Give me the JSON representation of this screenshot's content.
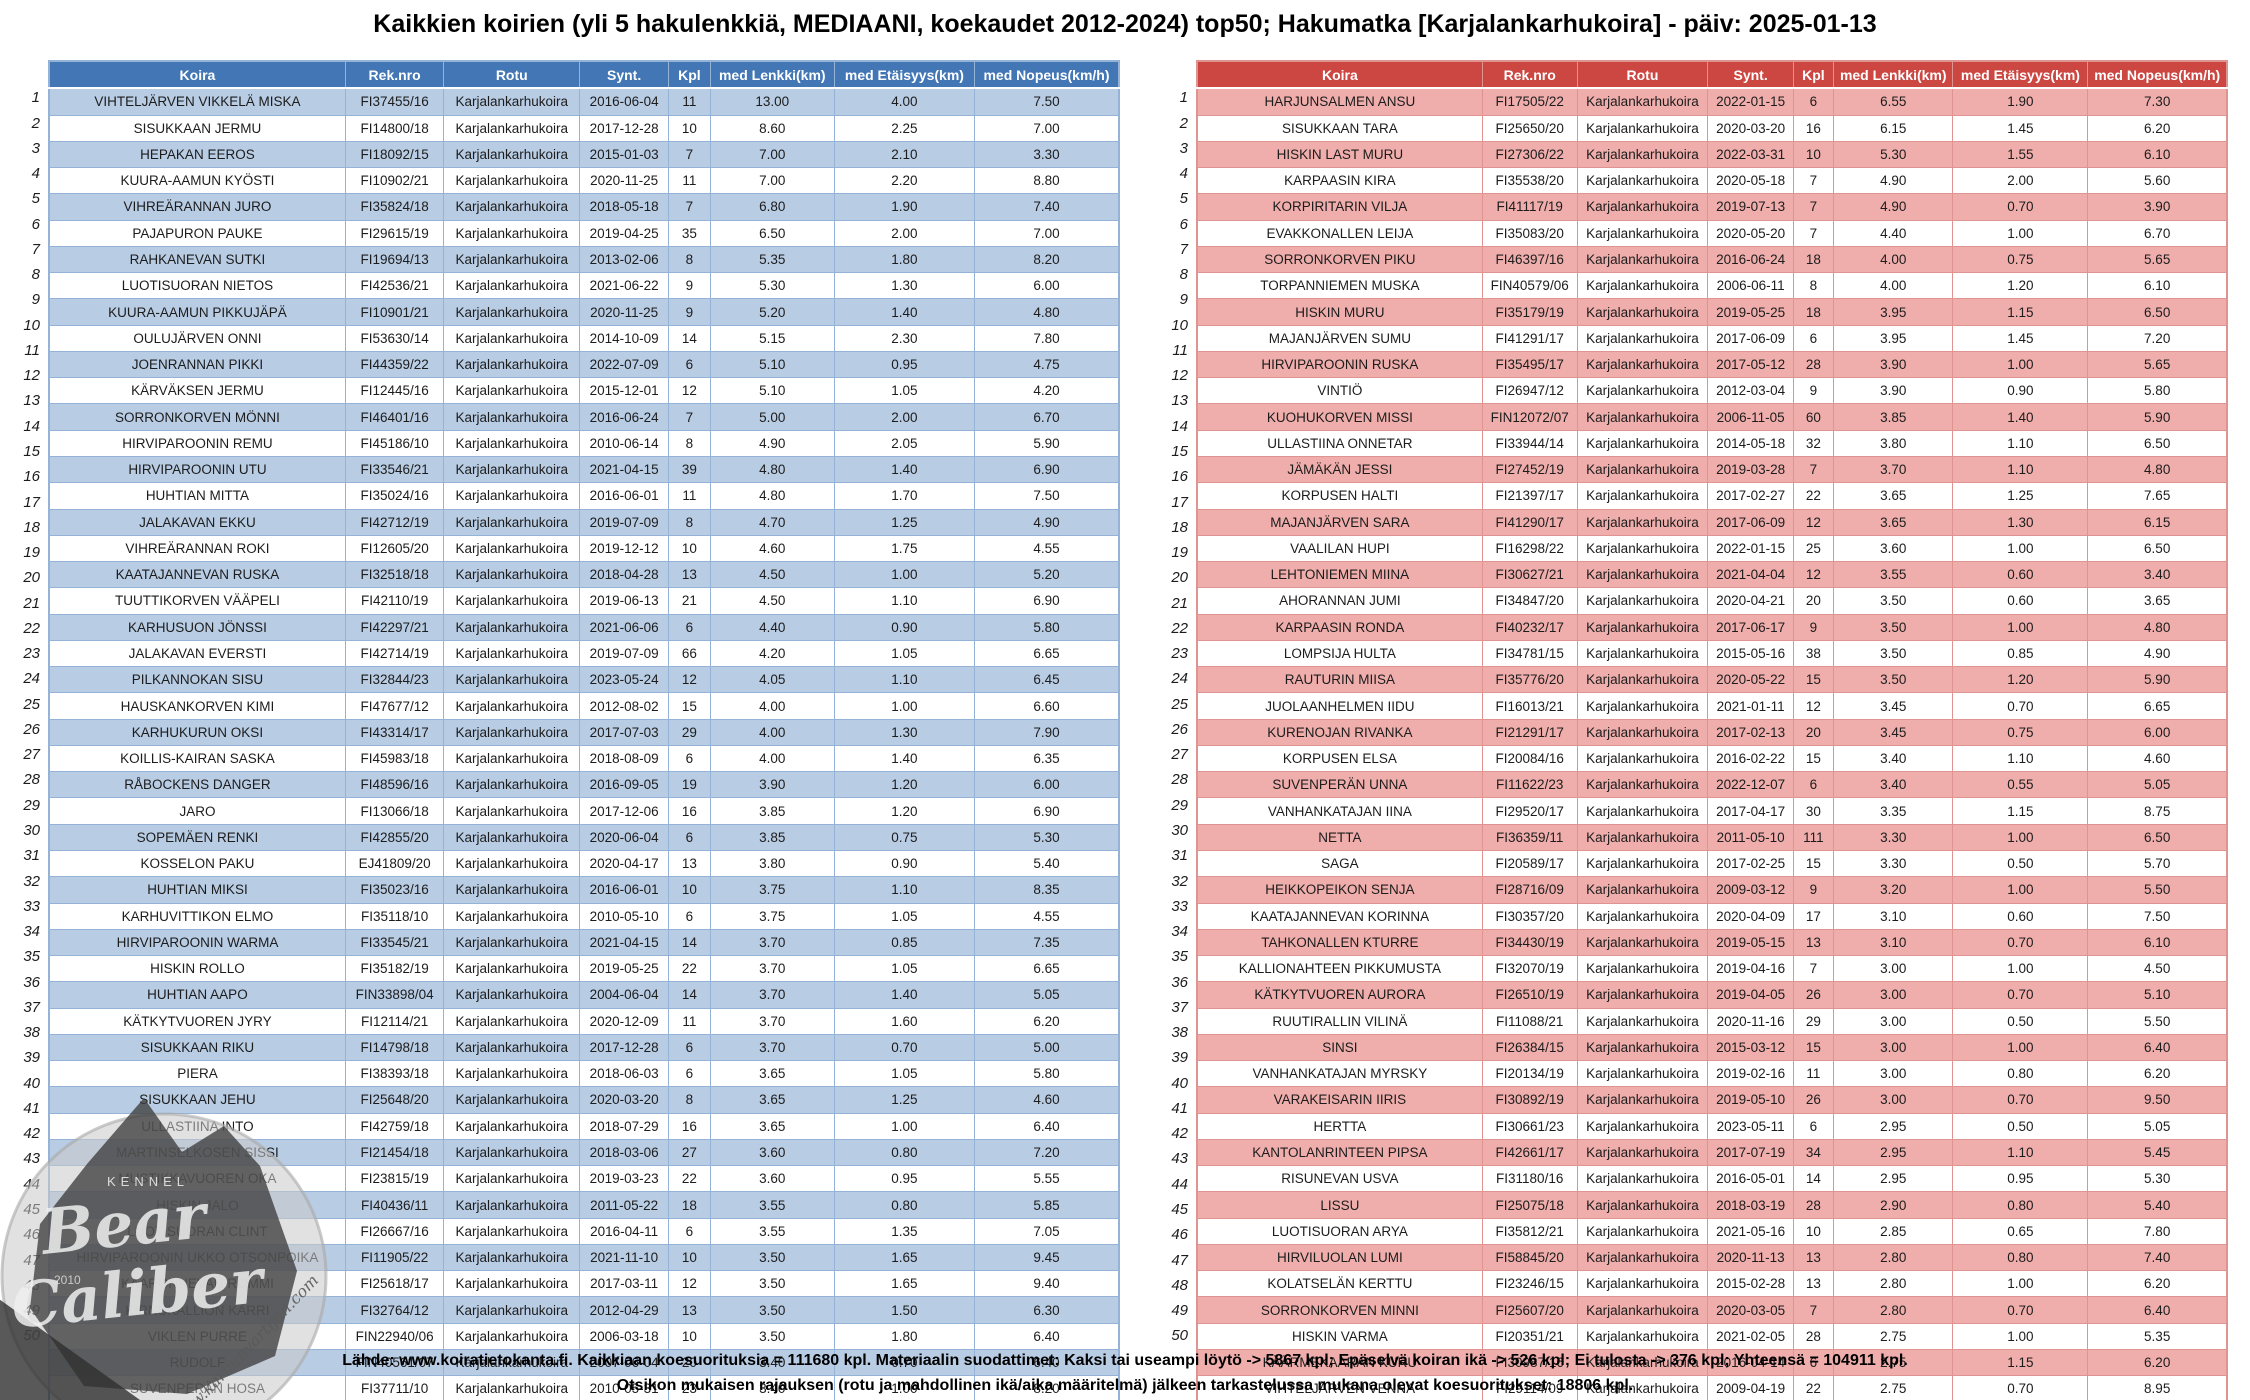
{
  "title": "Kaikkien koirien (yli 5 hakulenkkiä, MEDIAANI, koekaudet 2012-2024) top50; Hakumatka [Karjalankarhukoira] - päiv: 2025-01-13",
  "columns": [
    "Koira",
    "Rek.nro",
    "Rotu",
    "Synt.",
    "Kpl",
    "med Lenkki(km)",
    "med Etäisyys(km)",
    "med Nopeus(km/h)"
  ],
  "colors": {
    "left_header": "#4276b5",
    "left_band": "#b8cce4",
    "left_border": "#95b3d7",
    "right_header": "#cc4742",
    "right_band": "#efaeac",
    "right_border": "#e09492"
  },
  "left_table": {
    "rotu": "Karjalankarhukoira",
    "rows": [
      [
        "1",
        "VIHTELJÄRVEN VIKKELÄ MISKA",
        "FI37455/16",
        "2016-06-04",
        "11",
        "13.00",
        "4.00",
        "7.50"
      ],
      [
        "2",
        "SISUKKAAN JERMU",
        "FI14800/18",
        "2017-12-28",
        "10",
        "8.60",
        "2.25",
        "7.00"
      ],
      [
        "3",
        "HEPAKAN EEROS",
        "FI18092/15",
        "2015-01-03",
        "7",
        "7.00",
        "2.10",
        "3.30"
      ],
      [
        "4",
        "KUURA-AAMUN KYÖSTI",
        "FI10902/21",
        "2020-11-25",
        "11",
        "7.00",
        "2.20",
        "8.80"
      ],
      [
        "5",
        "VIHREÄRANNAN JURO",
        "FI35824/18",
        "2018-05-18",
        "7",
        "6.80",
        "1.90",
        "7.40"
      ],
      [
        "6",
        "PAJAPURON PAUKE",
        "FI29615/19",
        "2019-04-25",
        "35",
        "6.50",
        "2.00",
        "7.00"
      ],
      [
        "7",
        "RAHKANEVAN SUTKI",
        "FI19694/13",
        "2013-02-06",
        "8",
        "5.35",
        "1.80",
        "8.20"
      ],
      [
        "8",
        "LUOTISUORAN NIETOS",
        "FI42536/21",
        "2021-06-22",
        "9",
        "5.30",
        "1.30",
        "6.00"
      ],
      [
        "9",
        "KUURA-AAMUN PIKKUJÄPÄ",
        "FI10901/21",
        "2020-11-25",
        "9",
        "5.20",
        "1.40",
        "4.80"
      ],
      [
        "10",
        "OULUJÄRVEN ONNI",
        "FI53630/14",
        "2014-10-09",
        "14",
        "5.15",
        "2.30",
        "7.80"
      ],
      [
        "11",
        "JOENRANNAN PIKKI",
        "FI44359/22",
        "2022-07-09",
        "6",
        "5.10",
        "0.95",
        "4.75"
      ],
      [
        "12",
        "KÄRVÄKSEN JERMU",
        "FI12445/16",
        "2015-12-01",
        "12",
        "5.10",
        "1.05",
        "4.20"
      ],
      [
        "13",
        "SORRONKORVEN MÖNNI",
        "FI46401/16",
        "2016-06-24",
        "7",
        "5.00",
        "2.00",
        "6.70"
      ],
      [
        "14",
        "HIRVIPAROONIN REMU",
        "FI45186/10",
        "2010-06-14",
        "8",
        "4.90",
        "2.05",
        "5.90"
      ],
      [
        "15",
        "HIRVIPAROONIN UTU",
        "FI33546/21",
        "2021-04-15",
        "39",
        "4.80",
        "1.40",
        "6.90"
      ],
      [
        "16",
        "HUHTIAN MITTA",
        "FI35024/16",
        "2016-06-01",
        "11",
        "4.80",
        "1.70",
        "7.50"
      ],
      [
        "17",
        "JALAKAVAN EKKU",
        "FI42712/19",
        "2019-07-09",
        "8",
        "4.70",
        "1.25",
        "4.90"
      ],
      [
        "18",
        "VIHREÄRANNAN ROKI",
        "FI12605/20",
        "2019-12-12",
        "10",
        "4.60",
        "1.75",
        "4.55"
      ],
      [
        "19",
        "KAATAJANNEVAN RUSKA",
        "FI32518/18",
        "2018-04-28",
        "13",
        "4.50",
        "1.00",
        "5.20"
      ],
      [
        "20",
        "TUUTTIKORVEN VÄÄPELI",
        "FI42110/19",
        "2019-06-13",
        "21",
        "4.50",
        "1.10",
        "6.90"
      ],
      [
        "21",
        "KARHUSUON JÖNSSI",
        "FI42297/21",
        "2021-06-06",
        "6",
        "4.40",
        "0.90",
        "5.80"
      ],
      [
        "22",
        "JALAKAVAN EVERSTI",
        "FI42714/19",
        "2019-07-09",
        "66",
        "4.20",
        "1.05",
        "6.65"
      ],
      [
        "23",
        "PILKANNOKAN SISU",
        "FI32844/23",
        "2023-05-24",
        "12",
        "4.05",
        "1.10",
        "6.45"
      ],
      [
        "24",
        "HAUSKANKORVEN KIMI",
        "FI47677/12",
        "2012-08-02",
        "15",
        "4.00",
        "1.00",
        "6.60"
      ],
      [
        "25",
        "KARHUKURUN OKSI",
        "FI43314/17",
        "2017-07-03",
        "29",
        "4.00",
        "1.30",
        "7.90"
      ],
      [
        "26",
        "KOILLIS-KAIRAN SASKA",
        "FI45983/18",
        "2018-08-09",
        "6",
        "4.00",
        "1.40",
        "6.35"
      ],
      [
        "27",
        "RÅBOCKENS DANGER",
        "FI48596/16",
        "2016-09-05",
        "19",
        "3.90",
        "1.20",
        "6.00"
      ],
      [
        "28",
        "JARO",
        "FI13066/18",
        "2017-12-06",
        "16",
        "3.85",
        "1.20",
        "6.90"
      ],
      [
        "29",
        "SOPEMÄEN RENKI",
        "FI42855/20",
        "2020-06-04",
        "6",
        "3.85",
        "0.75",
        "5.30"
      ],
      [
        "30",
        "KOSSELON PAKU",
        "EJ41809/20",
        "2020-04-17",
        "13",
        "3.80",
        "0.90",
        "5.40"
      ],
      [
        "31",
        "HUHTIAN MIKSI",
        "FI35023/16",
        "2016-06-01",
        "10",
        "3.75",
        "1.10",
        "8.35"
      ],
      [
        "32",
        "KARHUVITTIKON ELMO",
        "FI35118/10",
        "2010-05-10",
        "6",
        "3.75",
        "1.05",
        "4.55"
      ],
      [
        "33",
        "HIRVIPAROONIN WARMA",
        "FI33545/21",
        "2021-04-15",
        "14",
        "3.70",
        "0.85",
        "7.35"
      ],
      [
        "34",
        "HISKIN ROLLO",
        "FI35182/19",
        "2019-05-25",
        "22",
        "3.70",
        "1.05",
        "6.65"
      ],
      [
        "35",
        "HUHTIAN AAPO",
        "FIN33898/04",
        "2004-06-04",
        "14",
        "3.70",
        "1.40",
        "5.05"
      ],
      [
        "36",
        "KÄTKYTVUOREN JYRY",
        "FI12114/21",
        "2020-12-09",
        "11",
        "3.70",
        "1.60",
        "6.20"
      ],
      [
        "37",
        "SISUKKAAN RIKU",
        "FI14798/18",
        "2017-12-28",
        "6",
        "3.70",
        "0.70",
        "5.00"
      ],
      [
        "38",
        "PIERA",
        "FI38393/18",
        "2018-06-03",
        "6",
        "3.65",
        "1.05",
        "5.80"
      ],
      [
        "39",
        "SISUKKAAN JEHU",
        "FI25648/20",
        "2020-03-20",
        "8",
        "3.65",
        "1.25",
        "4.60"
      ],
      [
        "40",
        "ULLASTIINA INTO",
        "FI42759/18",
        "2018-07-29",
        "16",
        "3.65",
        "1.00",
        "6.40"
      ],
      [
        "41",
        "MARTINSELKOSEN SISSI",
        "FI21454/18",
        "2018-03-06",
        "27",
        "3.60",
        "0.80",
        "7.20"
      ],
      [
        "42",
        "MUSTIKKAVUOREN OKA",
        "FI23815/19",
        "2019-03-23",
        "22",
        "3.60",
        "0.95",
        "5.55"
      ],
      [
        "43",
        "HISKIN JALO",
        "FI40436/11",
        "2011-05-22",
        "18",
        "3.55",
        "0.80",
        "5.85"
      ],
      [
        "44",
        "LUOTISUORAN CLINT",
        "FI26667/16",
        "2016-04-11",
        "6",
        "3.55",
        "1.35",
        "7.05"
      ],
      [
        "45",
        "HIRVIPAROONIN UKKO OTSONPOIKA",
        "FI11905/22",
        "2021-11-10",
        "10",
        "3.50",
        "1.65",
        "9.45"
      ],
      [
        "46",
        "KAARONNEVAN ROMMI",
        "FI25618/17",
        "2017-03-11",
        "12",
        "3.50",
        "1.65",
        "9.40"
      ],
      [
        "47",
        "KIRNUKALLION KARRI",
        "FI32764/12",
        "2012-04-29",
        "13",
        "3.50",
        "1.50",
        "6.30"
      ],
      [
        "48",
        "VIKLEN PURRE",
        "FIN22940/06",
        "2006-03-18",
        "10",
        "3.50",
        "1.80",
        "6.40"
      ],
      [
        "49",
        "RUDOLF",
        "FIN40561/07",
        "2007-06-04",
        "20",
        "3.40",
        "0.70",
        "6.40"
      ],
      [
        "50",
        "SUVENPERÄN HOSA",
        "FI37711/10",
        "2010-05-31",
        "23",
        "3.40",
        "1.00",
        "8.20"
      ]
    ]
  },
  "right_table": {
    "rotu": "Karjalankarhukoira",
    "rows": [
      [
        "1",
        "HARJUNSALMEN ANSU",
        "FI17505/22",
        "2022-01-15",
        "6",
        "6.55",
        "1.90",
        "7.30"
      ],
      [
        "2",
        "SISUKKAAN TARA",
        "FI25650/20",
        "2020-03-20",
        "16",
        "6.15",
        "1.45",
        "6.20"
      ],
      [
        "3",
        "HISKIN LAST MURU",
        "FI27306/22",
        "2022-03-31",
        "10",
        "5.30",
        "1.55",
        "6.10"
      ],
      [
        "4",
        "KARPAASIN KIRA",
        "FI35538/20",
        "2020-05-18",
        "7",
        "4.90",
        "2.00",
        "5.60"
      ],
      [
        "5",
        "KORPIRITARIN VILJA",
        "FI41117/19",
        "2019-07-13",
        "7",
        "4.90",
        "0.70",
        "3.90"
      ],
      [
        "6",
        "EVAKKONALLEN LEIJA",
        "FI35083/20",
        "2020-05-20",
        "7",
        "4.40",
        "1.00",
        "6.70"
      ],
      [
        "7",
        "SORRONKORVEN PIKU",
        "FI46397/16",
        "2016-06-24",
        "18",
        "4.00",
        "0.75",
        "5.65"
      ],
      [
        "8",
        "TORPANNIEMEN MUSKA",
        "FIN40579/06",
        "2006-06-11",
        "8",
        "4.00",
        "1.20",
        "6.10"
      ],
      [
        "9",
        "HISKIN MURU",
        "FI35179/19",
        "2019-05-25",
        "18",
        "3.95",
        "1.15",
        "6.50"
      ],
      [
        "10",
        "MAJANJÄRVEN SUMU",
        "FI41291/17",
        "2017-06-09",
        "6",
        "3.95",
        "1.45",
        "7.20"
      ],
      [
        "11",
        "HIRVIPAROONIN RUSKA",
        "FI35495/17",
        "2017-05-12",
        "28",
        "3.90",
        "1.00",
        "5.65"
      ],
      [
        "12",
        "VINTIÖ",
        "FI26947/12",
        "2012-03-04",
        "9",
        "3.90",
        "0.90",
        "5.80"
      ],
      [
        "13",
        "KUOHUKORVEN MISSI",
        "FIN12072/07",
        "2006-11-05",
        "60",
        "3.85",
        "1.40",
        "5.90"
      ],
      [
        "14",
        "ULLASTIINA ONNETAR",
        "FI33944/14",
        "2014-05-18",
        "32",
        "3.80",
        "1.10",
        "6.50"
      ],
      [
        "15",
        "JÄMÄKÄN JESSI",
        "FI27452/19",
        "2019-03-28",
        "7",
        "3.70",
        "1.10",
        "4.80"
      ],
      [
        "16",
        "KORPUSEN HALTI",
        "FI21397/17",
        "2017-02-27",
        "22",
        "3.65",
        "1.25",
        "7.65"
      ],
      [
        "17",
        "MAJANJÄRVEN SARA",
        "FI41290/17",
        "2017-06-09",
        "12",
        "3.65",
        "1.30",
        "6.15"
      ],
      [
        "18",
        "VAALILAN HUPI",
        "FI16298/22",
        "2022-01-15",
        "25",
        "3.60",
        "1.00",
        "6.50"
      ],
      [
        "19",
        "LEHTONIEMEN MIINA",
        "FI30627/21",
        "2021-04-04",
        "12",
        "3.55",
        "0.60",
        "3.40"
      ],
      [
        "20",
        "AHORANNAN JUMI",
        "FI34847/20",
        "2020-04-21",
        "20",
        "3.50",
        "0.60",
        "3.65"
      ],
      [
        "21",
        "KARPAASIN RONDA",
        "FI40232/17",
        "2017-06-17",
        "9",
        "3.50",
        "1.00",
        "4.80"
      ],
      [
        "22",
        "LOMPSIJA HULTA",
        "FI34781/15",
        "2015-05-16",
        "38",
        "3.50",
        "0.85",
        "4.90"
      ],
      [
        "23",
        "RAUTURIN MIISA",
        "FI35776/20",
        "2020-05-22",
        "15",
        "3.50",
        "1.20",
        "5.90"
      ],
      [
        "24",
        "JUOLAANHELMEN IIDU",
        "FI16013/21",
        "2021-01-11",
        "12",
        "3.45",
        "0.70",
        "6.65"
      ],
      [
        "25",
        "KURENOJAN RIVANKA",
        "FI21291/17",
        "2017-02-13",
        "20",
        "3.45",
        "0.75",
        "6.00"
      ],
      [
        "26",
        "KORPUSEN ELSA",
        "FI20084/16",
        "2016-02-22",
        "15",
        "3.40",
        "1.10",
        "4.60"
      ],
      [
        "27",
        "SUVENPERÄN UNNA",
        "FI11622/23",
        "2022-12-07",
        "6",
        "3.40",
        "0.55",
        "5.05"
      ],
      [
        "28",
        "VANHANKATAJAN IINA",
        "FI29520/17",
        "2017-04-17",
        "30",
        "3.35",
        "1.15",
        "8.75"
      ],
      [
        "29",
        "NETTA",
        "FI36359/11",
        "2011-05-10",
        "111",
        "3.30",
        "1.00",
        "6.50"
      ],
      [
        "30",
        "SAGA",
        "FI20589/17",
        "2017-02-25",
        "15",
        "3.30",
        "0.50",
        "5.70"
      ],
      [
        "31",
        "HEIKKOPEIKON SENJA",
        "FI28716/09",
        "2009-03-12",
        "9",
        "3.20",
        "1.00",
        "5.50"
      ],
      [
        "32",
        "KAATAJANNEVAN KORINNA",
        "FI30357/20",
        "2020-04-09",
        "17",
        "3.10",
        "0.60",
        "7.50"
      ],
      [
        "33",
        "TAHKONALLEN KTURRE",
        "FI34430/19",
        "2019-05-15",
        "13",
        "3.10",
        "0.70",
        "6.10"
      ],
      [
        "34",
        "KALLIONAHTEEN PIKKUMUSTA",
        "FI32070/19",
        "2019-04-16",
        "7",
        "3.00",
        "1.00",
        "4.50"
      ],
      [
        "35",
        "KÄTKYTVUOREN AURORA",
        "FI26510/19",
        "2019-04-05",
        "26",
        "3.00",
        "0.70",
        "5.10"
      ],
      [
        "36",
        "RUUTIRALLIN VILINÄ",
        "FI11088/21",
        "2020-11-16",
        "29",
        "3.00",
        "0.50",
        "5.50"
      ],
      [
        "37",
        "SINSI",
        "FI26384/15",
        "2015-03-12",
        "15",
        "3.00",
        "1.00",
        "6.40"
      ],
      [
        "38",
        "VANHANKATAJAN MYRSKY",
        "FI20134/19",
        "2019-02-16",
        "11",
        "3.00",
        "0.80",
        "6.20"
      ],
      [
        "39",
        "VARAKEISARIN IIRIS",
        "FI30892/19",
        "2019-05-10",
        "26",
        "3.00",
        "0.70",
        "9.50"
      ],
      [
        "40",
        "HERTTA",
        "FI30661/23",
        "2023-05-11",
        "6",
        "2.95",
        "0.50",
        "5.05"
      ],
      [
        "41",
        "KANTOLANRINTEEN PIPSA",
        "FI42661/17",
        "2017-07-19",
        "34",
        "2.95",
        "1.10",
        "5.45"
      ],
      [
        "42",
        "RISUNEVAN USVA",
        "FI31180/16",
        "2016-05-01",
        "14",
        "2.95",
        "0.95",
        "5.30"
      ],
      [
        "43",
        "LISSU",
        "FI25075/18",
        "2018-03-19",
        "28",
        "2.90",
        "0.80",
        "5.40"
      ],
      [
        "44",
        "LUOTISUORAN ARYA",
        "FI35812/21",
        "2021-05-16",
        "10",
        "2.85",
        "0.65",
        "7.80"
      ],
      [
        "45",
        "HIRVILUOLAN LUMI",
        "FI58845/20",
        "2020-11-13",
        "13",
        "2.80",
        "0.80",
        "7.40"
      ],
      [
        "46",
        "KOLATSELÄN KERTTU",
        "FI23246/15",
        "2015-02-28",
        "13",
        "2.80",
        "1.00",
        "6.20"
      ],
      [
        "47",
        "SORRONKORVEN MINNI",
        "FI25607/20",
        "2020-03-05",
        "7",
        "2.80",
        "0.70",
        "6.40"
      ],
      [
        "48",
        "HISKIN VARMA",
        "FI20351/21",
        "2021-02-05",
        "28",
        "2.75",
        "1.00",
        "5.35"
      ],
      [
        "49",
        "KÄÄRMEKAARAN KURU",
        "FI30987/16",
        "2016-04-14",
        "6",
        "2.75",
        "1.15",
        "6.20"
      ],
      [
        "50",
        "VIHTELJÄRVEN VENNA",
        "FI29114/09",
        "2009-04-19",
        "22",
        "2.75",
        "0.70",
        "8.95"
      ]
    ]
  },
  "watermark": {
    "kennel": "KENNEL",
    "name_line1": "Bear",
    "name_line2": "Caliber",
    "year": "2010",
    "url": "www.karhunvartijan.com"
  },
  "footer": {
    "line1": "Lähde: www.koiratietokanta.fi. Kaikkiaan koesuorituksia = 111680 kpl. Materiaalin suodattimet: Kaksi tai useampi löytö -> 5867 kpl; Epäselvä koiran ikä -> 526 kpl; Ei tulosta -> 376 kpl; Yhteensä = 104911 kpl.",
    "line2": "Otsikon mukaisen rajauksen (rotu ja mahdollinen ikä/aika määritelmä) jälkeen tarkastelussa mukana olevat koesuoritukset: 18806 kpl."
  }
}
